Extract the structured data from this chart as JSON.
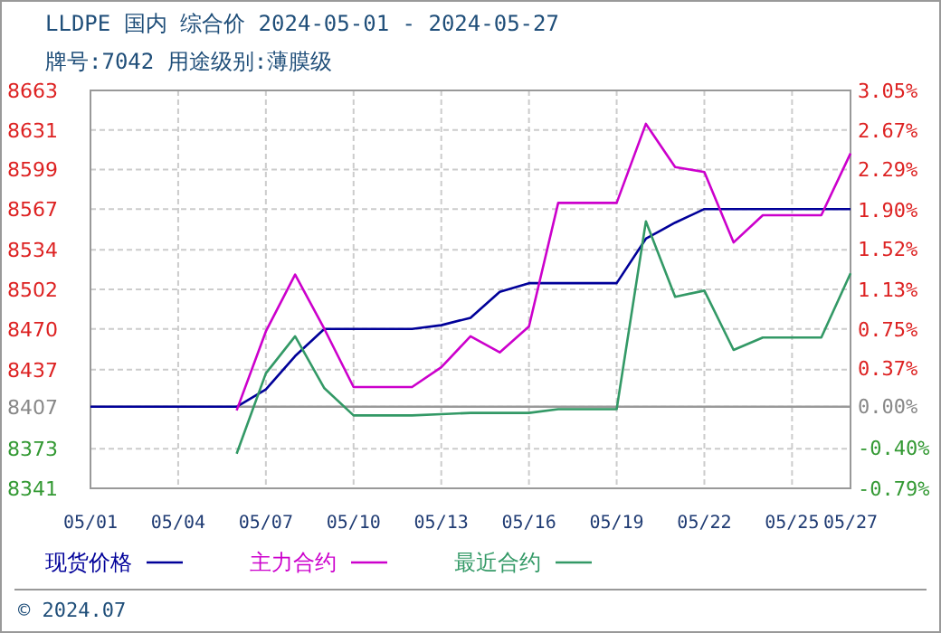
{
  "chart_data": {
    "type": "line",
    "title": "LLDPE 国内 综合价 2024-05-01 - 2024-05-27",
    "subtitle": "牌号:7042 用途级别:薄膜级",
    "annotations": [
      "© 2024.07"
    ],
    "x": [
      "2024-05-01",
      "2024-05-02",
      "2024-05-03",
      "2024-05-04",
      "2024-05-05",
      "2024-05-06",
      "2024-05-07",
      "2024-05-08",
      "2024-05-09",
      "2024-05-10",
      "2024-05-11",
      "2024-05-12",
      "2024-05-13",
      "2024-05-14",
      "2024-05-15",
      "2024-05-16",
      "2024-05-17",
      "2024-05-18",
      "2024-05-19",
      "2024-05-20",
      "2024-05-21",
      "2024-05-22",
      "2024-05-23",
      "2024-05-24",
      "2024-05-25",
      "2024-05-26",
      "2024-05-27"
    ],
    "series": [
      {
        "name": "现货价格",
        "color": "#000099",
        "values": [
          8407,
          8407,
          8407,
          8407,
          8407,
          8407,
          8421,
          8448,
          8470,
          8470,
          8470,
          8470,
          8473,
          8479,
          8500,
          8507,
          8507,
          8507,
          8507,
          8543,
          8556,
          8567,
          8567,
          8567,
          8567,
          8567,
          8567
        ]
      },
      {
        "name": "主力合约",
        "color": "#cc00cc",
        "values": [
          null,
          null,
          null,
          null,
          null,
          8404,
          8468,
          8514,
          8470,
          8423,
          8423,
          8423,
          8439,
          8464,
          8451,
          8472,
          8572,
          8572,
          8572,
          8636,
          8601,
          8597,
          8540,
          8562,
          8562,
          8562,
          8612
        ]
      },
      {
        "name": "最近合约",
        "color": "#339966",
        "values": [
          null,
          null,
          null,
          null,
          null,
          8369,
          8434,
          8464,
          8422,
          8400,
          8400,
          8400,
          8401,
          8402,
          8402,
          8402,
          8405,
          8405,
          8405,
          8557,
          8496,
          8501,
          8453,
          8463,
          8463,
          8463,
          8515
        ]
      }
    ],
    "xlim": [
      "2024-05-01",
      "2024-05-27"
    ],
    "xticks": [
      {
        "value": "2024-05-01",
        "label": "05/01"
      },
      {
        "value": "2024-05-04",
        "label": "05/04"
      },
      {
        "value": "2024-05-07",
        "label": "05/07"
      },
      {
        "value": "2024-05-10",
        "label": "05/10"
      },
      {
        "value": "2024-05-13",
        "label": "05/13"
      },
      {
        "value": "2024-05-16",
        "label": "05/16"
      },
      {
        "value": "2024-05-19",
        "label": "05/19"
      },
      {
        "value": "2024-05-22",
        "label": "05/22"
      },
      {
        "value": "2024-05-25",
        "label": "05/25"
      },
      {
        "value": "2024-05-27",
        "label": "05/27"
      }
    ],
    "ylim": [
      8341,
      8663
    ],
    "yticks": [
      8341,
      8373,
      8407,
      8437,
      8470,
      8502,
      8534,
      8567,
      8599,
      8631,
      8663
    ],
    "y2lim": [
      -0.79,
      3.05
    ],
    "y2ticks": [
      {
        "value": -0.79,
        "label": "-0.79%"
      },
      {
        "value": -0.4,
        "label": "-0.40%"
      },
      {
        "value": 0,
        "label": "0.00%"
      },
      {
        "value": 0.37,
        "label": "0.37%"
      },
      {
        "value": 0.75,
        "label": "0.75%"
      },
      {
        "value": 1.13,
        "label": "1.13%"
      },
      {
        "value": 1.52,
        "label": "1.52%"
      },
      {
        "value": 1.9,
        "label": "1.90%"
      },
      {
        "value": 2.29,
        "label": "2.29%"
      },
      {
        "value": 2.67,
        "label": "2.67%"
      },
      {
        "value": 3.05,
        "label": "3.05%"
      }
    ],
    "ref_lines": [
      {
        "axis": "y",
        "value": 8407,
        "color": "#999999"
      }
    ],
    "grid": true,
    "legend": "bottom",
    "line_style": "solid"
  }
}
